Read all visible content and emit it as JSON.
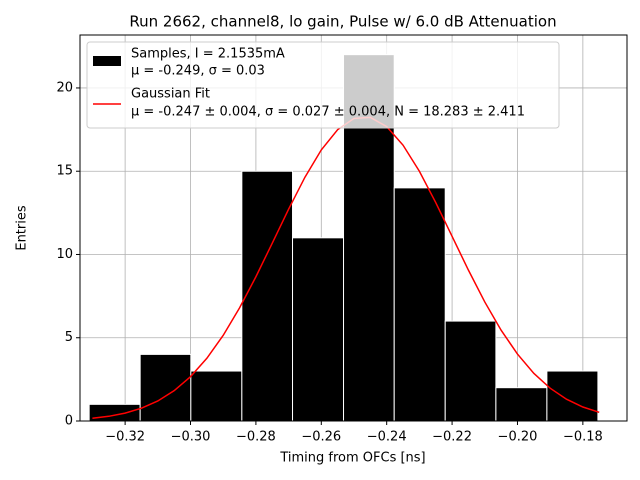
{
  "chart_data": {
    "type": "histogram",
    "title": "Run 2662, channel8, lo gain, Pulse w/ 6.0 dB Attenuation",
    "xlabel": "Timing from OFCs [ns]",
    "ylabel": "Entries",
    "bins": [
      -0.331,
      -0.3154,
      -0.2999,
      -0.2843,
      -0.2688,
      -0.2532,
      -0.2377,
      -0.2221,
      -0.2066,
      -0.191,
      -0.1754
    ],
    "counts": [
      1,
      4,
      3,
      15,
      11,
      22,
      14,
      6,
      2,
      3
    ],
    "color": "#000000",
    "name": [
      "Samples, I = 2.1535mA",
      "μ = -0.249, σ = 0.03"
    ],
    "fit": {
      "name": [
        "Gaussian Fit",
        "μ = -0.247 ± 0.004, σ = 0.027 ± 0.004, N = 18.283 ± 2.411"
      ],
      "color": "#ff0000",
      "x": [
        -0.33,
        -0.325,
        -0.32,
        -0.315,
        -0.31,
        -0.305,
        -0.3,
        -0.295,
        -0.29,
        -0.285,
        -0.28,
        -0.275,
        -0.27,
        -0.265,
        -0.26,
        -0.255,
        -0.25,
        -0.245,
        -0.24,
        -0.235,
        -0.23,
        -0.225,
        -0.22,
        -0.215,
        -0.21,
        -0.205,
        -0.2,
        -0.195,
        -0.19,
        -0.185,
        -0.18,
        -0.175
      ],
      "values": [
        0.162,
        0.282,
        0.473,
        0.767,
        1.202,
        1.82,
        2.662,
        3.765,
        5.145,
        6.792,
        8.663,
        10.679,
        12.718,
        14.641,
        16.281,
        17.497,
        18.17,
        18.233,
        17.679,
        16.565,
        14.996,
        13.118,
        11.089,
        9.059,
        7.149,
        5.452,
        4.019,
        2.861,
        1.969,
        1.309,
        0.841,
        0.522
      ]
    },
    "xlim": [
      -0.3338,
      -0.1665
    ],
    "ylim": [
      0,
      23.18
    ],
    "xticks": [
      {
        "value": -0.32,
        "label": "−0.32"
      },
      {
        "value": -0.3,
        "label": "−0.30"
      },
      {
        "value": -0.28,
        "label": "−0.28"
      },
      {
        "value": -0.26,
        "label": "−0.26"
      },
      {
        "value": -0.24,
        "label": "−0.24"
      },
      {
        "value": -0.22,
        "label": "−0.22"
      },
      {
        "value": -0.2,
        "label": "−0.20"
      },
      {
        "value": -0.18,
        "label": "−0.18"
      }
    ],
    "yticks": [
      0,
      5,
      10,
      15,
      20
    ],
    "grid": true,
    "legend": "upper left"
  }
}
